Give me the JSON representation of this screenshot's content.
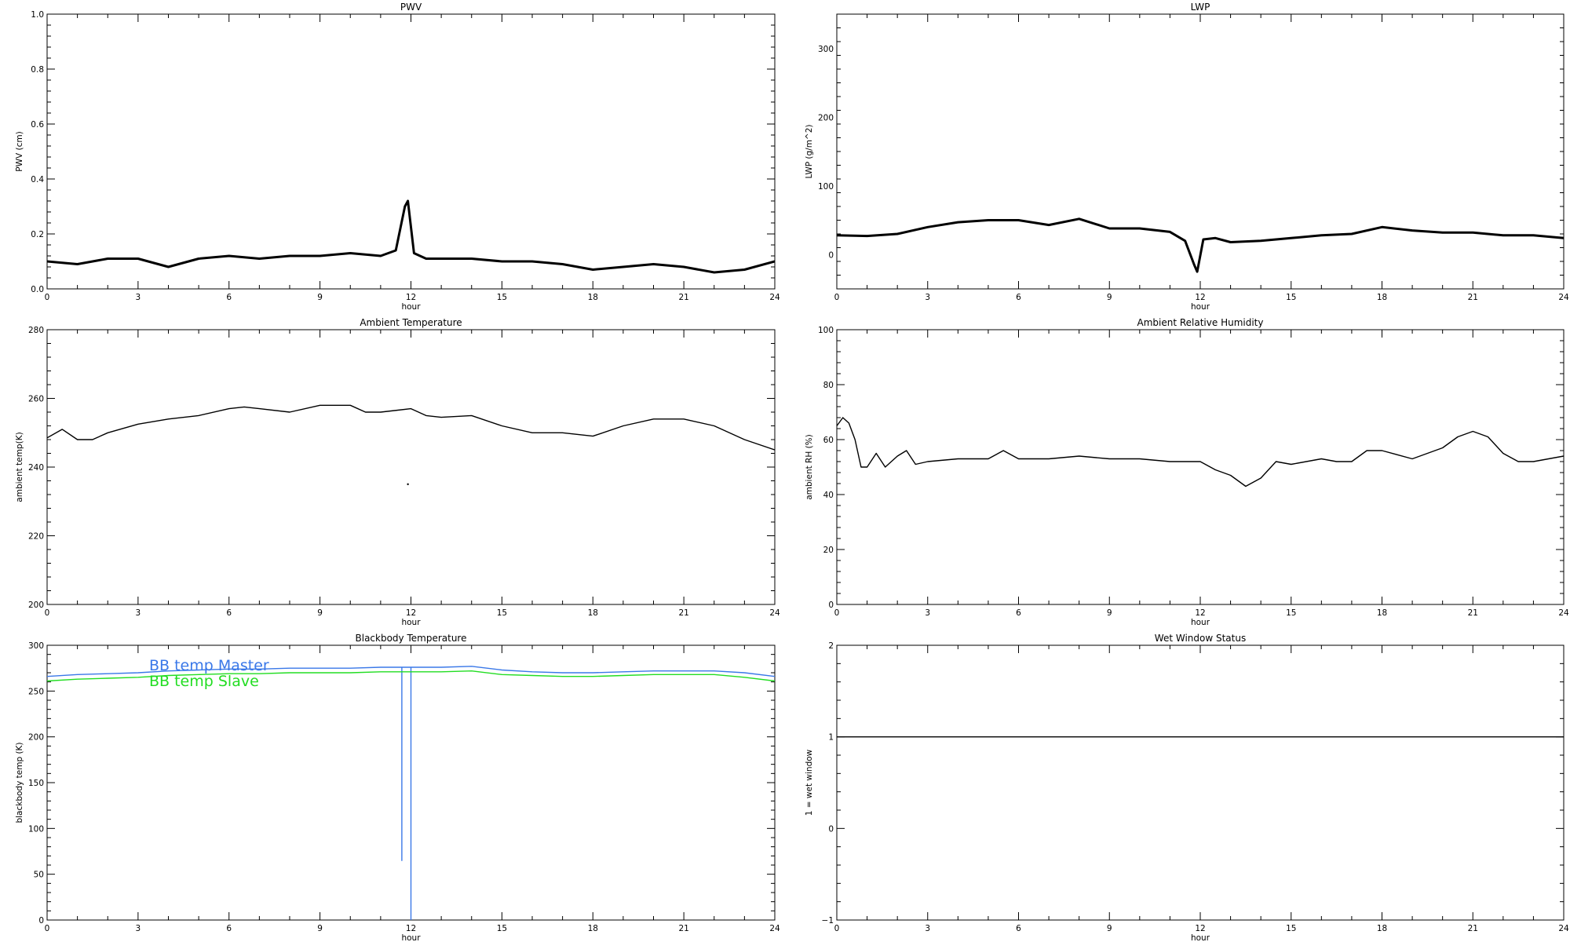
{
  "chart_data": [
    {
      "type": "line",
      "title": "PWV",
      "xlabel": "hour",
      "ylabel": "PWV (cm)",
      "xlim": [
        0,
        24
      ],
      "ylim": [
        0,
        1.0
      ],
      "xticks": [
        0,
        3,
        6,
        9,
        12,
        15,
        18,
        21,
        24
      ],
      "yticks": [
        0.0,
        0.2,
        0.4,
        0.6,
        0.8,
        1.0
      ],
      "ytick_labels": [
        "0.0",
        "0.2",
        "0.4",
        "0.6",
        "0.8",
        "1.0"
      ],
      "series": [
        {
          "color": "#000000",
          "x": [
            0,
            1,
            2,
            3,
            4,
            5,
            6,
            7,
            8,
            9,
            10,
            11,
            11.5,
            11.8,
            11.9,
            12.1,
            12.5,
            13,
            14,
            15,
            16,
            17,
            18,
            19,
            20,
            21,
            22,
            23,
            24
          ],
          "y": [
            0.1,
            0.09,
            0.11,
            0.11,
            0.08,
            0.11,
            0.12,
            0.11,
            0.12,
            0.12,
            0.13,
            0.12,
            0.14,
            0.3,
            0.32,
            0.13,
            0.11,
            0.11,
            0.11,
            0.1,
            0.1,
            0.09,
            0.07,
            0.08,
            0.09,
            0.08,
            0.06,
            0.07,
            0.1
          ]
        }
      ]
    },
    {
      "type": "line",
      "title": "LWP",
      "xlabel": "hour",
      "ylabel": "LWP (g/m^2)",
      "xlim": [
        0,
        24
      ],
      "ylim": [
        -50,
        350
      ],
      "xticks": [
        0,
        3,
        6,
        9,
        12,
        15,
        18,
        21,
        24
      ],
      "yticks": [
        0,
        100,
        200,
        300
      ],
      "ytick_labels": [
        "0",
        "100",
        "200",
        "300"
      ],
      "series": [
        {
          "color": "#000000",
          "x": [
            0,
            1,
            2,
            3,
            4,
            5,
            6,
            7,
            8,
            9,
            10,
            11,
            11.5,
            11.8,
            11.9,
            12.1,
            12.5,
            13,
            14,
            15,
            16,
            17,
            18,
            19,
            20,
            21,
            22,
            23,
            24
          ],
          "y": [
            28,
            27,
            30,
            40,
            47,
            50,
            50,
            43,
            52,
            38,
            38,
            33,
            20,
            -15,
            -25,
            22,
            24,
            18,
            20,
            24,
            28,
            30,
            40,
            35,
            32,
            32,
            28,
            28,
            24
          ]
        }
      ]
    },
    {
      "type": "line",
      "title": "Ambient Temperature",
      "xlabel": "hour",
      "ylabel": "ambient temp(K)",
      "xlim": [
        0,
        24
      ],
      "ylim": [
        200,
        280
      ],
      "xticks": [
        0,
        3,
        6,
        9,
        12,
        15,
        18,
        21,
        24
      ],
      "yticks": [
        200,
        220,
        240,
        260,
        280
      ],
      "ytick_labels": [
        "200",
        "220",
        "240",
        "260",
        "280"
      ],
      "series": [
        {
          "color": "#000000",
          "x": [
            0,
            0.5,
            1,
            1.5,
            2,
            3,
            4,
            5,
            6,
            6.5,
            7,
            8,
            9,
            10,
            10.5,
            11,
            12,
            12.5,
            13,
            14,
            15,
            16,
            17,
            18,
            19,
            20,
            21,
            22,
            23,
            24
          ],
          "y": [
            248.5,
            251,
            248,
            248,
            250,
            252.5,
            254,
            255,
            257,
            257.5,
            257,
            256,
            258,
            258,
            256,
            256,
            257,
            255,
            254.5,
            255,
            252,
            250,
            250,
            249,
            252,
            254,
            254,
            252,
            248,
            245
          ]
        },
        {
          "color": "#000000",
          "x": [
            11.9
          ],
          "y": [
            235
          ]
        }
      ]
    },
    {
      "type": "line",
      "title": "Ambient Relative Humidity",
      "xlabel": "hour",
      "ylabel": "ambient RH (%)",
      "xlim": [
        0,
        24
      ],
      "ylim": [
        0,
        100
      ],
      "xticks": [
        0,
        3,
        6,
        9,
        12,
        15,
        18,
        21,
        24
      ],
      "yticks": [
        0,
        20,
        40,
        60,
        80,
        100
      ],
      "ytick_labels": [
        "0",
        "20",
        "40",
        "60",
        "80",
        "100"
      ],
      "series": [
        {
          "color": "#000000",
          "x": [
            0,
            0.2,
            0.4,
            0.6,
            0.8,
            1,
            1.3,
            1.6,
            2,
            2.3,
            2.6,
            3,
            4,
            5,
            5.5,
            6,
            7,
            8,
            9,
            10,
            11,
            12,
            12.5,
            13,
            13.5,
            14,
            14.5,
            15,
            16,
            16.5,
            17,
            17.5,
            18,
            19,
            20,
            20.5,
            21,
            21.5,
            22,
            22.5,
            23,
            24
          ],
          "y": [
            65,
            68,
            66,
            60,
            50,
            50,
            55,
            50,
            54,
            56,
            51,
            52,
            53,
            53,
            56,
            53,
            53,
            54,
            53,
            53,
            52,
            52,
            49,
            47,
            43,
            46,
            52,
            51,
            53,
            52,
            52,
            56,
            56,
            53,
            57,
            61,
            63,
            61,
            55,
            52,
            52,
            54
          ]
        }
      ]
    },
    {
      "type": "line",
      "title": "Blackbody Temperature",
      "xlabel": "hour",
      "ylabel": "blackbody temp (K)",
      "xlim": [
        0,
        24
      ],
      "ylim": [
        0,
        300
      ],
      "xticks": [
        0,
        3,
        6,
        9,
        12,
        15,
        18,
        21,
        24
      ],
      "yticks": [
        0,
        50,
        100,
        150,
        200,
        250,
        300
      ],
      "ytick_labels": [
        "0",
        "50",
        "100",
        "150",
        "200",
        "250",
        "300"
      ],
      "legend": "top-left",
      "series": [
        {
          "name": "BB temp Master",
          "color": "#3a78e8",
          "x": [
            0,
            1,
            2,
            3,
            4,
            5,
            6,
            7,
            8,
            9,
            10,
            11,
            11.7,
            11.7,
            11.7,
            11.75,
            12,
            12,
            12,
            12.05,
            13,
            14,
            15,
            16,
            17,
            18,
            19,
            20,
            21,
            22,
            23,
            24
          ],
          "y": [
            266,
            268,
            269,
            270,
            272,
            273,
            274,
            274,
            275,
            275,
            275,
            276,
            276,
            65,
            276,
            276,
            276,
            0,
            276,
            276,
            276,
            277,
            273,
            271,
            270,
            270,
            271,
            272,
            272,
            272,
            270,
            266
          ]
        },
        {
          "name": "BB temp Slave",
          "color": "#22dd22",
          "x": [
            0,
            1,
            2,
            3,
            4,
            5,
            6,
            7,
            8,
            9,
            10,
            11,
            12,
            13,
            14,
            15,
            16,
            17,
            18,
            19,
            20,
            21,
            22,
            23,
            24
          ],
          "y": [
            261,
            263,
            264,
            265,
            267,
            268,
            269,
            269,
            270,
            270,
            270,
            271,
            271,
            271,
            272,
            268,
            267,
            266,
            266,
            267,
            268,
            268,
            268,
            265,
            261
          ]
        }
      ]
    },
    {
      "type": "line",
      "title": "Wet Window Status",
      "xlabel": "hour",
      "ylabel": "1 = wet window",
      "xlim": [
        0,
        24
      ],
      "ylim": [
        -1,
        2
      ],
      "xticks": [
        0,
        3,
        6,
        9,
        12,
        15,
        18,
        21,
        24
      ],
      "yticks": [
        -1,
        0,
        1,
        2
      ],
      "ytick_labels": [
        "−1",
        "0",
        "1",
        "2"
      ],
      "series": [
        {
          "color": "#000000",
          "x": [
            0,
            24
          ],
          "y": [
            1,
            1
          ]
        }
      ]
    }
  ]
}
